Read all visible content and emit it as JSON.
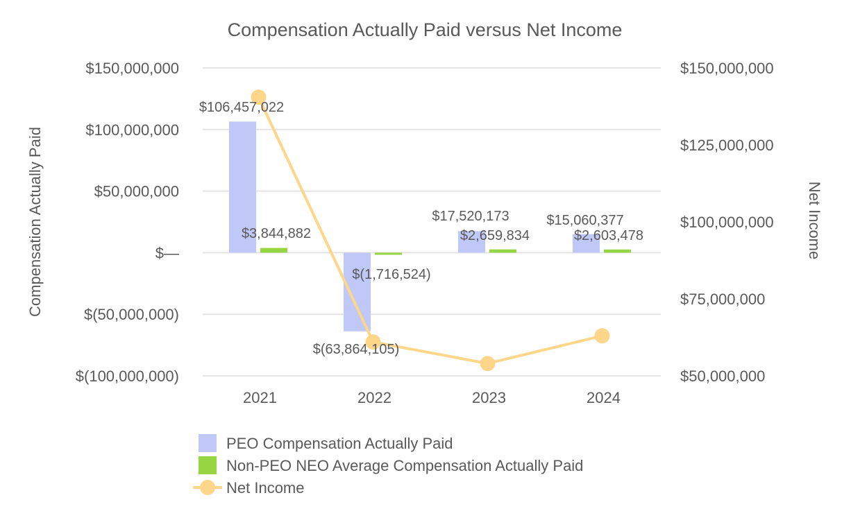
{
  "chart_data": {
    "type": "bar",
    "title": "Compensation Actually Paid versus Net Income",
    "categories": [
      "2021",
      "2022",
      "2023",
      "2024"
    ],
    "ylabel": "Compensation Actually Paid",
    "y2label": "Net Income",
    "ylim": [
      -100000000,
      150000000
    ],
    "y2lim": [
      50000000,
      150000000
    ],
    "y_ticks": [
      {
        "value": 150000000,
        "label": "$150,000,000"
      },
      {
        "value": 100000000,
        "label": "$100,000,000"
      },
      {
        "value": 50000000,
        "label": "$50,000,000"
      },
      {
        "value": 0,
        "label": "$—"
      },
      {
        "value": -50000000,
        "label": "$(50,000,000)"
      },
      {
        "value": -100000000,
        "label": "$(100,000,000)"
      }
    ],
    "y2_ticks": [
      {
        "value": 150000000,
        "label": "$150,000,000"
      },
      {
        "value": 125000000,
        "label": "$125,000,000"
      },
      {
        "value": 100000000,
        "label": "$100,000,000"
      },
      {
        "value": 75000000,
        "label": "$75,000,000"
      },
      {
        "value": 50000000,
        "label": "$50,000,000"
      }
    ],
    "grid": true,
    "legend_position": "bottom-left",
    "series": [
      {
        "name": "PEO Compensation Actually Paid",
        "type": "bar",
        "axis": "left",
        "color": "#c0c8f8",
        "values": [
          106457022,
          -63864105,
          17520173,
          15060377
        ],
        "labels": [
          "$106,457,022",
          "$(63,864,105)",
          "$17,520,173",
          "$15,060,377"
        ]
      },
      {
        "name": "Non-PEO NEO Average Compensation Actually Paid",
        "type": "bar",
        "axis": "left",
        "color": "#96d643",
        "values": [
          3844882,
          -1716524,
          2659834,
          2603478
        ],
        "labels": [
          "$3,844,882",
          "$(1,716,524)",
          "$2,659,834",
          "$2,603,478"
        ]
      },
      {
        "name": "Net Income",
        "type": "line",
        "axis": "right",
        "color": "#fdd68a",
        "values": [
          140500000,
          61000000,
          54000000,
          63000000
        ]
      }
    ]
  }
}
